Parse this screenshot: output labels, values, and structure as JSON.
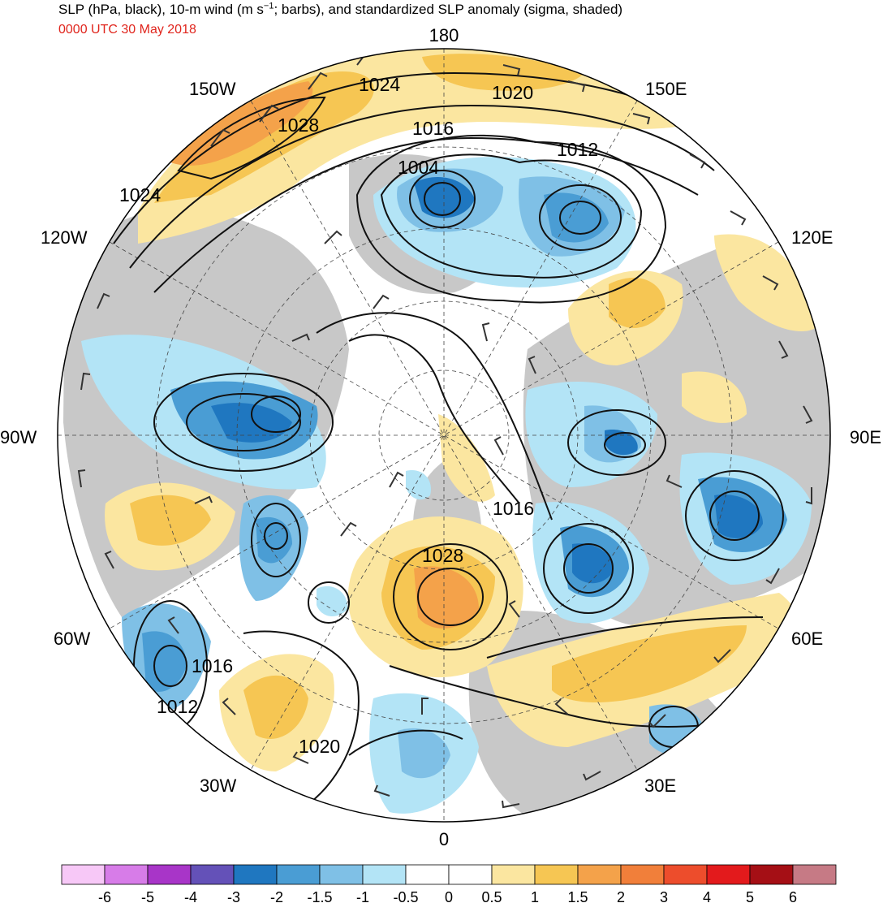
{
  "header": {
    "title_main": "SLP (hPa, black), 10-m wind (m s",
    "title_sup": "−1",
    "title_rest": "; barbs), and standardized SLP anomaly (sigma, shaded)",
    "date": "0000 UTC 30 May 2018"
  },
  "longitude_labels": {
    "top": "180",
    "bottom": "0",
    "left": "90W",
    "right": "90E",
    "upper_left_1": "150W",
    "upper_left_2": "120W",
    "upper_right_1": "150E",
    "upper_right_2": "120E",
    "lower_left_1": "60W",
    "lower_left_2": "30W",
    "lower_right_1": "60E",
    "lower_right_2": "30E"
  },
  "isobar_labels": {
    "l1024_n": "1024",
    "l1020_n": "1020",
    "l1028_nw": "1028",
    "l1016_n": "1016",
    "l1012_n": "1012",
    "l1004": "1004",
    "l1024_w": "1024",
    "l1016_e": "1016",
    "l1028_s": "1028",
    "l1016_sw": "1016",
    "l1012_sw": "1012",
    "l1020_s": "1020"
  },
  "colors": {
    "land": "#c8c8c8",
    "ocean": "#ffffff",
    "date_text": "#e0251d",
    "isobar": "#111111"
  },
  "colorbar": {
    "ticks": [
      "-6",
      "-5",
      "-4",
      "-3",
      "-2",
      "-1.5",
      "-1",
      "-0.5",
      "0",
      "0.5",
      "1",
      "1.5",
      "2",
      "3",
      "4",
      "5",
      "6"
    ],
    "colors": [
      "#f7c8f7",
      "#d77ce8",
      "#a835c8",
      "#6451b8",
      "#1f77c0",
      "#4a9dd4",
      "#7fc0e6",
      "#b3e4f6",
      "#ffffff",
      "#ffffff",
      "#fbe6a0",
      "#f6c653",
      "#f4a24a",
      "#f17f3a",
      "#ed4d2c",
      "#e31a1c",
      "#a50f15",
      "#c67a85"
    ]
  }
}
